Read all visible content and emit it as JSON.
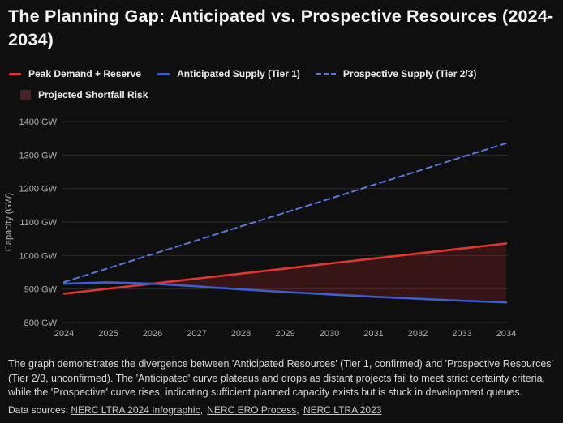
{
  "title": "The Planning Gap: Anticipated vs. Prospective Resources (2024-2034)",
  "colors": {
    "background": "#0f0f0f",
    "title_text": "#f5f5f5",
    "legend_text": "#ececec",
    "tick_text": "#b0b0b0",
    "grid": "#2c2c2c",
    "peak_demand": "#e1372e",
    "anticipated": "#3e5ecf",
    "prospective": "#5878dd",
    "shortfall_fill": "rgba(167,39,43,0.27)",
    "shortfall_swatch": "#472123",
    "body_text": "#d8d8d8",
    "link_text": "#c8c8c8"
  },
  "legend": {
    "peak_demand": "Peak Demand + Reserve",
    "anticipated": "Anticipated Supply (Tier 1)",
    "prospective": "Prospective Supply (Tier 2/3)",
    "shortfall": "Projected Shortfall Risk"
  },
  "chart_data": {
    "type": "line",
    "x": [
      2024,
      2025,
      2026,
      2027,
      2028,
      2029,
      2030,
      2031,
      2032,
      2033,
      2034
    ],
    "xlabel": "",
    "ylabel": "Capacity (GW)",
    "ylim": [
      800,
      1400
    ],
    "yticks": [
      "800 GW",
      "900 GW",
      "1000 GW",
      "1100 GW",
      "1200 GW",
      "1300 GW",
      "1400 GW"
    ],
    "grid": "horizontal-only",
    "legend_position": "top-left",
    "series": [
      {
        "name": "Peak Demand + Reserve",
        "style": "solid",
        "color_key": "peak_demand",
        "values": [
          886,
          901,
          916,
          931,
          946,
          961,
          976,
          991,
          1006,
          1021,
          1036
        ]
      },
      {
        "name": "Anticipated Supply (Tier 1)",
        "style": "solid",
        "color_key": "anticipated",
        "values": [
          916,
          920,
          916,
          908,
          899,
          891,
          884,
          877,
          871,
          865,
          860
        ]
      },
      {
        "name": "Prospective Supply (Tier 2/3)",
        "style": "dashed",
        "color_key": "prospective",
        "values": [
          921,
          962,
          1004,
          1045,
          1087,
          1128,
          1169,
          1211,
          1252,
          1294,
          1335
        ]
      }
    ],
    "shaded_region": {
      "name": "Projected Shortfall Risk",
      "between": [
        "Peak Demand + Reserve",
        "Anticipated Supply (Tier 1)"
      ],
      "where": "demand exceeds supply (from ~2026 onward)"
    }
  },
  "description": "The graph demonstrates the divergence between 'Anticipated Resources' (Tier 1, confirmed) and 'Prospective Resources' (Tier 2/3, unconfirmed). The 'Anticipated' curve plateaus and drops as distant projects fail to meet strict certainty criteria, while the 'Prospective' curve rises, indicating sufficient planned capacity exists but is stuck in development queues.",
  "sources": {
    "label": "Data sources: ",
    "separator": ", ",
    "links": [
      "NERC LTRA 2024 Infographic",
      "NERC ERO Process",
      "NERC LTRA 2023"
    ]
  }
}
